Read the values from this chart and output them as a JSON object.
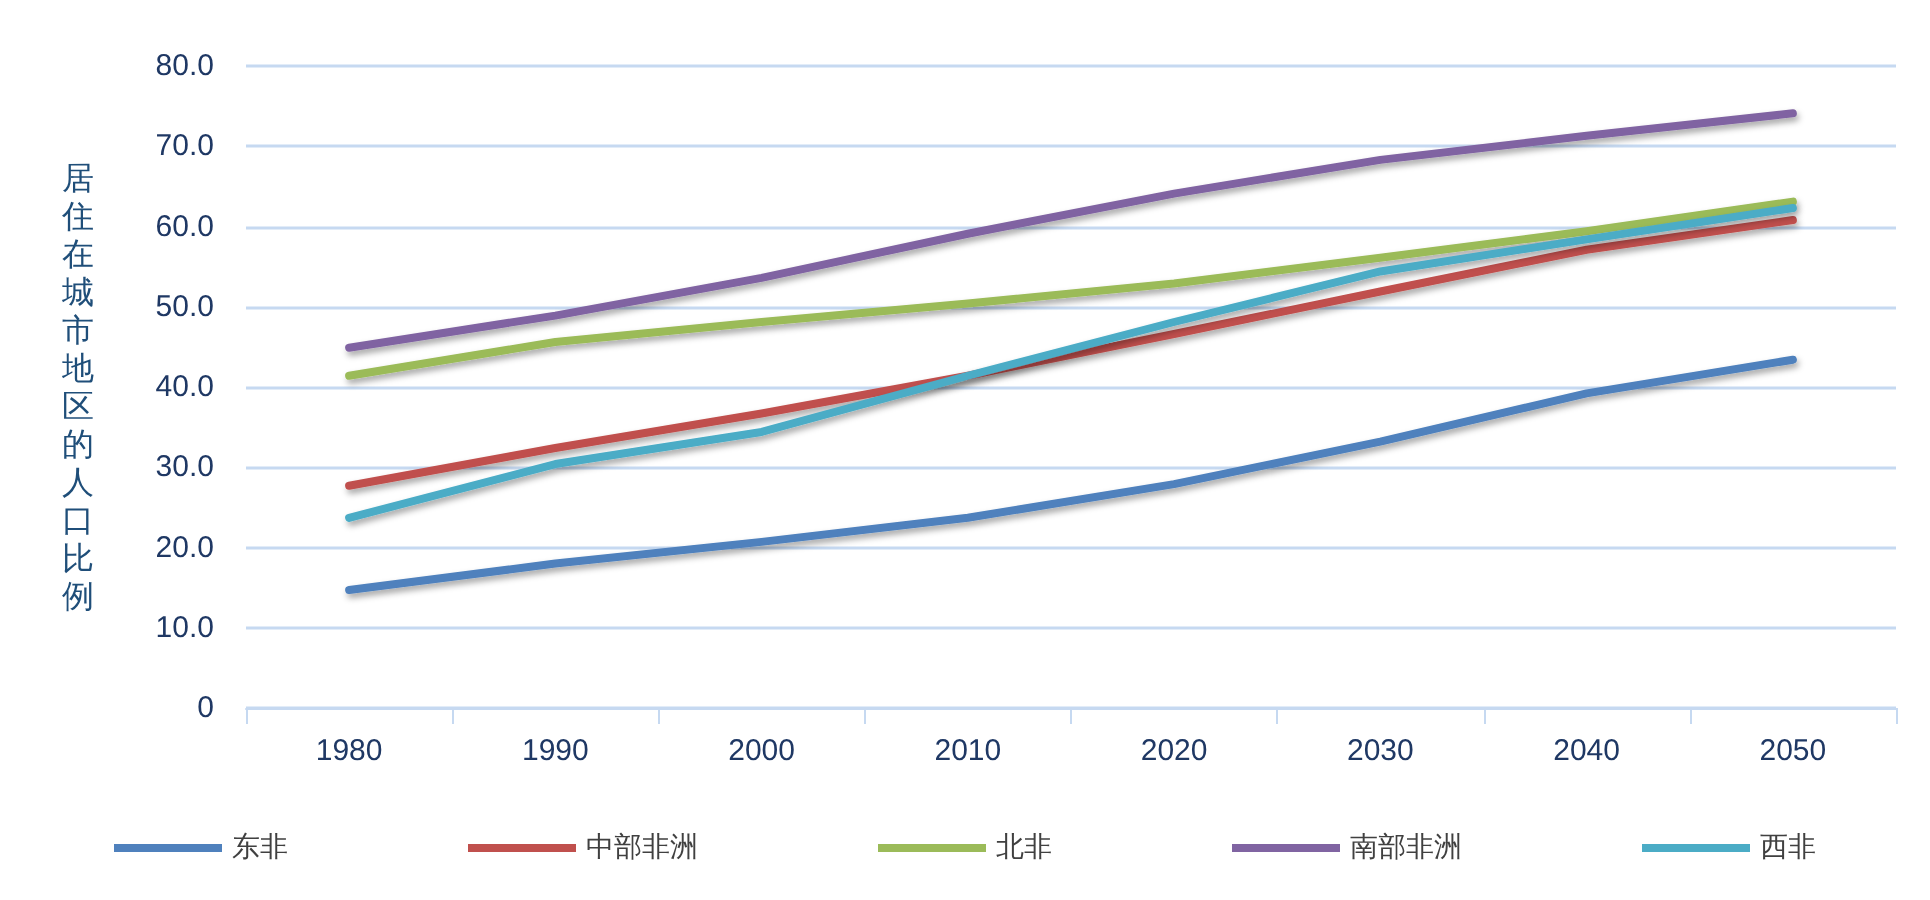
{
  "chart_data": {
    "type": "line",
    "ylabel": "居住在城市地区的人口比例",
    "categories": [
      "1980",
      "1990",
      "2000",
      "2010",
      "2020",
      "2030",
      "2040",
      "2050"
    ],
    "series": [
      {
        "name": "东非",
        "color": "#4f81bd",
        "values": [
          14.7,
          18.0,
          20.7,
          23.7,
          27.9,
          33.2,
          39.2,
          43.4
        ]
      },
      {
        "name": "中部非洲",
        "color": "#c0504d",
        "values": [
          27.7,
          32.4,
          36.7,
          41.4,
          46.6,
          51.9,
          57.1,
          60.8
        ]
      },
      {
        "name": "北非",
        "color": "#9bbb59",
        "values": [
          41.4,
          45.6,
          48.1,
          50.4,
          52.9,
          56.1,
          59.4,
          63.1
        ]
      },
      {
        "name": "南部非洲",
        "color": "#8064a2",
        "values": [
          44.9,
          48.9,
          53.6,
          59.1,
          64.1,
          68.3,
          71.3,
          74.1
        ]
      },
      {
        "name": "西非",
        "color": "#4bacc6",
        "values": [
          23.7,
          30.4,
          34.4,
          41.4,
          48.1,
          54.4,
          58.4,
          62.3
        ]
      }
    ],
    "ylim": [
      0,
      80
    ],
    "yticks": [
      {
        "value": 0,
        "label": "0"
      },
      {
        "value": 10,
        "label": "10.0"
      },
      {
        "value": 20,
        "label": "20.0"
      },
      {
        "value": 30,
        "label": "30.0"
      },
      {
        "value": 40,
        "label": "40.0"
      },
      {
        "value": 50,
        "label": "50.0"
      },
      {
        "value": 60,
        "label": "60.0"
      },
      {
        "value": 70,
        "label": "70.0"
      },
      {
        "value": 80,
        "label": "80.0"
      }
    ],
    "grid": "y",
    "legend": "bottom",
    "marker": "none",
    "line_style": "solid"
  }
}
